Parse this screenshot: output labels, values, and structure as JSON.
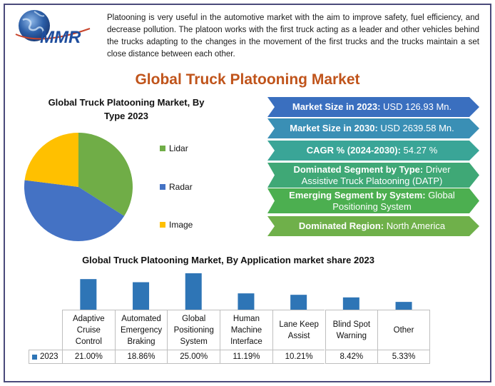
{
  "logo": {
    "text": "MMR"
  },
  "intro_text": "Platooning is very useful in the automotive market with the aim to improve safety, fuel efficiency, and decrease pollution. The platoon works with the first truck acting as a leader and other vehicles behind the trucks adapting to the changes in the movement of the first trucks and the trucks maintain a set close distance between each other.",
  "main_title": "Global Truck Platooning Market",
  "banners": [
    {
      "label": "Market Size in 2023:",
      "value": " USD 126.93 Mn.",
      "color": "#3a6fbf"
    },
    {
      "label": "Market Size in 2030:",
      "value": " USD 2639.58 Mn.",
      "color": "#3a8fb5"
    },
    {
      "label": "CAGR % (2024-2030):",
      "value": " 54.27 %",
      "color": "#3aa597"
    },
    {
      "label": "Dominated Segment by Type:",
      "value": " Driver Assistive Truck Platooning (DATP)",
      "color": "#3fa876"
    },
    {
      "label": "Emerging Segment by System:",
      "value": " Global Positioning System",
      "color": "#4caf50"
    },
    {
      "label": "Dominated Region:",
      "value": " North America",
      "color": "#6fb04a"
    }
  ],
  "chart_data": [
    {
      "type": "pie",
      "title": "Global Truck Platooning Market, By Type 2023",
      "labels": [
        "Lidar",
        "Radar",
        "Image"
      ],
      "values": [
        34,
        43,
        23
      ],
      "colors": [
        "#70ad47",
        "#4472c4",
        "#ffc000"
      ],
      "legend_position": "right"
    },
    {
      "type": "bar",
      "title": "Global Truck Platooning Market, By Application market share  2023",
      "categories": [
        "Adaptive Cruise Control",
        "Automated Emergency Braking",
        "Global Positioning System",
        "Human Machine Interface",
        "Lane Keep Assist",
        "Blind Spot Warning",
        "Other"
      ],
      "category_lines": [
        [
          "Adaptive",
          "Cruise",
          "Control"
        ],
        [
          "Automated",
          "Emergency",
          "Braking"
        ],
        [
          "Global",
          "Positioning",
          "System"
        ],
        [
          "Human",
          "Machine",
          "Interface"
        ],
        [
          "Lane Keep",
          "Assist"
        ],
        [
          "Blind Spot",
          "Warning"
        ],
        [
          "Other"
        ]
      ],
      "series": [
        {
          "name": "2023",
          "values": [
            21.0,
            18.86,
            25.0,
            11.19,
            10.21,
            8.42,
            5.33
          ],
          "value_labels": [
            "21.00%",
            "18.86%",
            "25.00%",
            "11.19%",
            "10.21%",
            "8.42%",
            "5.33%"
          ],
          "color": "#2e75b6"
        }
      ],
      "ylim": [
        0,
        25
      ],
      "grid": false,
      "data_table": true
    }
  ]
}
